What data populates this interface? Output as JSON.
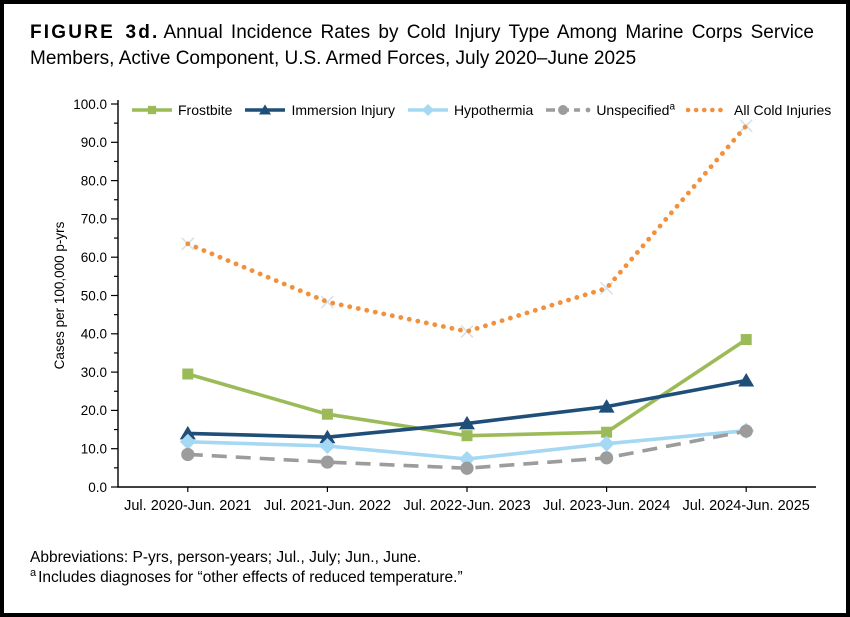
{
  "figure": {
    "label": "FIGURE 3d.",
    "title": "Annual Incidence Rates by Cold Injury Type Among Marine Corps Service Members, Active Component, U.S. Armed Forces, July 2020–June 2025"
  },
  "footnotes": {
    "abbreviations": "Abbreviations: P-yrs, person-years; Jul., July; Jun., June.",
    "note_a_marker": "a",
    "note_a_text": "Includes diagnoses for “other effects of reduced temperature.”"
  },
  "chart_data": {
    "type": "line",
    "title": "",
    "xlabel": "",
    "ylabel": "Cases per 100,000 p-yrs",
    "ylim": [
      0,
      100
    ],
    "ytick_step": 10,
    "yminor_step": 5,
    "ytick_format_decimals": 1,
    "grid": false,
    "legend_position": "top-inside",
    "axis_color": "#000000",
    "categories": [
      "Jul. 2020-Jun. 2021",
      "Jul. 2021-Jun. 2022",
      "Jul. 2022-Jun. 2023",
      "Jul. 2023-Jun. 2024",
      "Jul. 2024-Jun. 2025"
    ],
    "series": [
      {
        "name": "Frostbite",
        "values": [
          29.5,
          19.0,
          13.4,
          14.3,
          38.5
        ],
        "color": "#9BBB59",
        "marker": "square",
        "line": "solid"
      },
      {
        "name": "Immersion Injury",
        "values": [
          14.0,
          13.0,
          16.6,
          21.0,
          27.8
        ],
        "color": "#1F4E79",
        "marker": "triangle",
        "line": "solid"
      },
      {
        "name": "Hypothermia",
        "values": [
          11.8,
          10.7,
          7.3,
          11.3,
          14.7
        ],
        "color": "#A5D8F2",
        "marker": "diamond",
        "line": "solid"
      },
      {
        "name": "Unspecified",
        "sup": "a",
        "values": [
          8.5,
          6.5,
          4.9,
          7.6,
          14.6
        ],
        "color": "#9C9C9C",
        "marker": "circle",
        "line": "dashed"
      },
      {
        "name": "All Cold Injuries",
        "values": [
          63.5,
          48.3,
          40.6,
          51.9,
          94.3
        ],
        "color": "#F2913D",
        "marker": "x-ghost",
        "marker_color": "#D3E3F0",
        "line": "dotted"
      }
    ]
  }
}
